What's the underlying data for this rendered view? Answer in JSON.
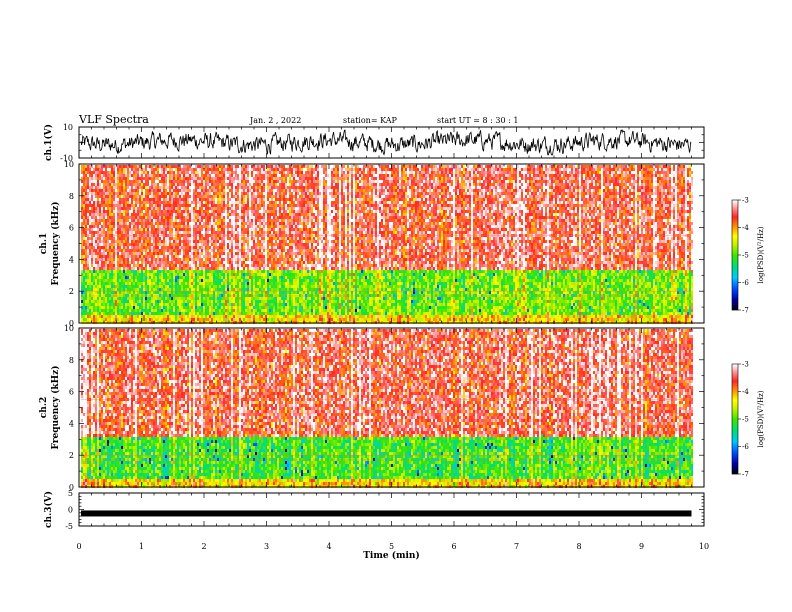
{
  "header": {
    "title": "VLF Spectra",
    "date": "Jan. 2 , 2022",
    "station": "station= KAP",
    "start": "start UT =  8 : 30 : 1"
  },
  "colors": {
    "spectrogram_high": "#ff3030",
    "spectrogram_mid": "#ffff00",
    "spectrogram_low": "#00e000",
    "waveform": "#000000"
  },
  "chart_data": [
    {
      "type": "line",
      "panel": "ch1-waveform",
      "ylabel": "ch.1(V)",
      "ylim": [
        -10,
        10
      ],
      "ytick_labels": [
        "10",
        "-10"
      ],
      "xlim": [
        0,
        10
      ],
      "x_end": 9.8,
      "description_values": {
        "mean": 0,
        "approx_range": [
          -6,
          6
        ]
      }
    },
    {
      "type": "heatmap",
      "panel": "ch1-spectrogram",
      "ylabel": "ch.1\nFrequency (kHz)",
      "ylim": [
        0,
        10
      ],
      "ytick_labels": [
        "0",
        "2",
        "4",
        "6",
        "8",
        "10"
      ],
      "xlim": [
        0,
        10
      ],
      "x_end": 9.8,
      "colorbar": {
        "label": "log(PSD)(V²/Hz)",
        "range": [
          -7,
          -3
        ],
        "tick_labels": [
          "-3",
          "-4",
          "-5",
          "-6",
          "-7"
        ]
      },
      "bands": [
        {
          "from_khz": 3.4,
          "to_khz": 10,
          "level": -3.5
        },
        {
          "from_khz": 0.6,
          "to_khz": 3.4,
          "level": -4.8
        },
        {
          "from_khz": 0,
          "to_khz": 0.6,
          "level": -4.2
        }
      ]
    },
    {
      "type": "heatmap",
      "panel": "ch2-spectrogram",
      "ylabel": "ch.2\nFrequency (kHz)",
      "ylim": [
        0,
        10
      ],
      "ytick_labels": [
        "0",
        "2",
        "4",
        "6",
        "8",
        "10"
      ],
      "xlim": [
        0,
        10
      ],
      "x_end": 9.8,
      "colorbar": {
        "label": "log(PSD)(V²/Hz)",
        "range": [
          -7,
          -3
        ],
        "tick_labels": [
          "-3",
          "-4",
          "-5",
          "-6",
          "-7"
        ]
      },
      "bands": [
        {
          "from_khz": 3.2,
          "to_khz": 10,
          "level": -3.5
        },
        {
          "from_khz": 0.6,
          "to_khz": 3.2,
          "level": -5.0
        },
        {
          "from_khz": 0,
          "to_khz": 0.6,
          "level": -4.2
        }
      ]
    },
    {
      "type": "line",
      "panel": "ch3-waveform",
      "ylabel": "ch.3(V)",
      "ylim": [
        -5,
        5
      ],
      "ytick_labels": [
        "5",
        "0",
        "-5"
      ],
      "xlim": [
        0,
        10
      ],
      "x_end": 9.8,
      "description_values": {
        "mean": -1.2
      }
    }
  ],
  "xaxis": {
    "label": "Time (min)",
    "tick_labels": [
      "0",
      "1",
      "2",
      "3",
      "4",
      "5",
      "6",
      "7",
      "8",
      "9",
      "10"
    ]
  }
}
